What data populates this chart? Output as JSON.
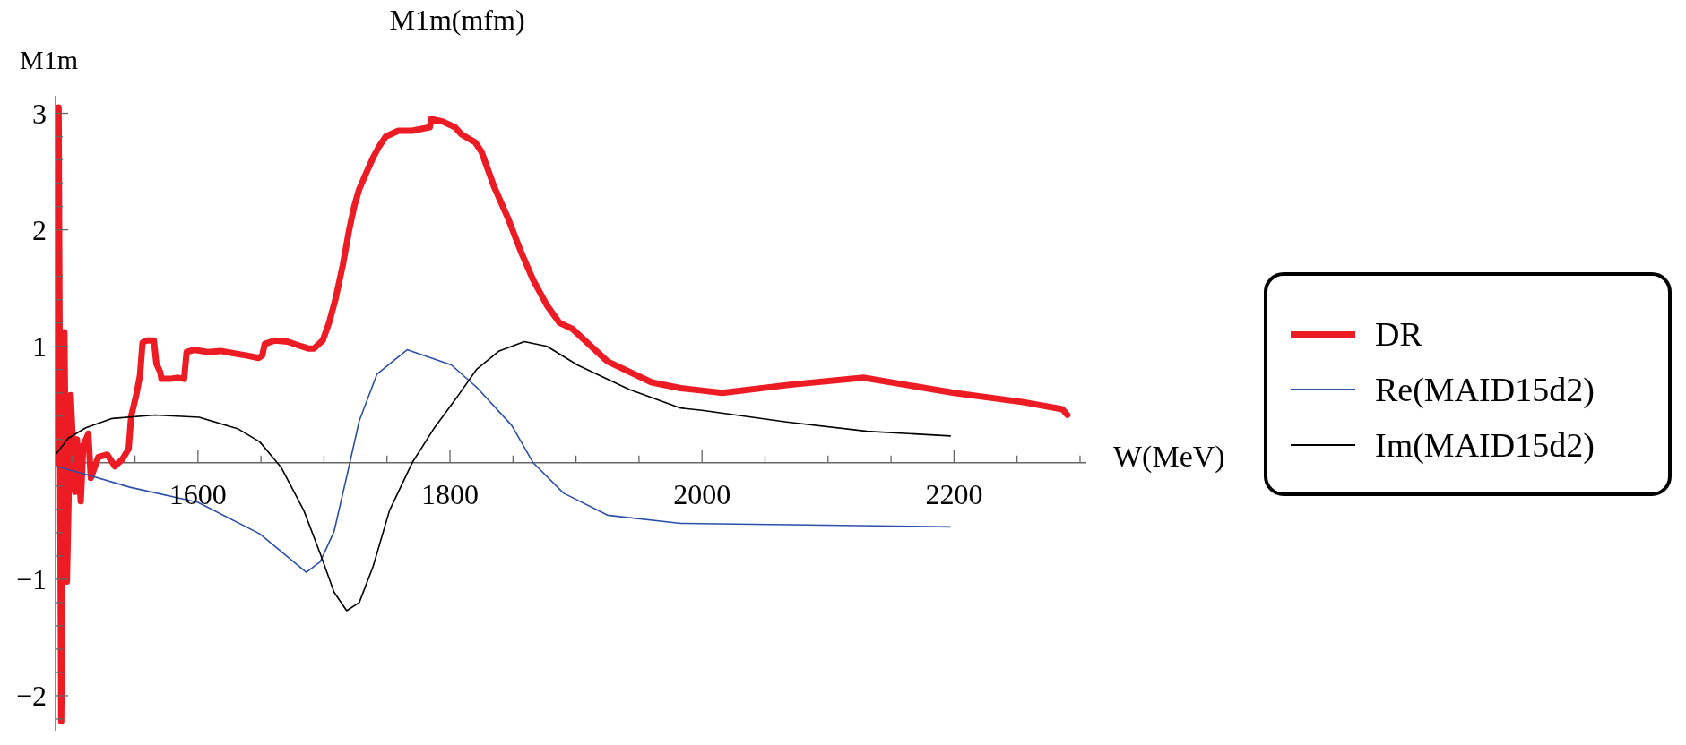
{
  "chart_data": {
    "type": "line",
    "title": "M1m(mfm)",
    "ylabel": "M1m",
    "xlabel": "W(MeV)",
    "xlim": [
      1487,
      2305
    ],
    "ylim": [
      -2.3,
      3.15
    ],
    "xticks": [
      {
        "value": 1500,
        "label": null
      },
      {
        "value": 1550,
        "label": null
      },
      1600,
      {
        "value": 1650,
        "label": null
      },
      {
        "value": 1700,
        "label": null
      },
      {
        "value": 1750,
        "label": null
      },
      1800,
      {
        "value": 1850,
        "label": null
      },
      {
        "value": 1900,
        "label": null
      },
      {
        "value": 1950,
        "label": null
      },
      2000,
      {
        "value": 2050,
        "label": null
      },
      {
        "value": 2100,
        "label": null
      },
      {
        "value": 2150,
        "label": null
      },
      2200,
      {
        "value": 2250,
        "label": null
      },
      {
        "value": 2300,
        "label": null
      }
    ],
    "yticks": [
      {
        "value": -2.2,
        "label": null
      },
      {
        "value": -2,
        "label": "−2"
      },
      {
        "value": -1.8,
        "label": null
      },
      {
        "value": -1.6,
        "label": null
      },
      {
        "value": -1.4,
        "label": null
      },
      {
        "value": -1.2,
        "label": null
      },
      {
        "value": -1,
        "label": "−1"
      },
      {
        "value": -0.8,
        "label": null
      },
      {
        "value": -0.6,
        "label": null
      },
      {
        "value": -0.4,
        "label": null
      },
      {
        "value": -0.2,
        "label": null
      },
      {
        "value": 0.2,
        "label": null
      },
      {
        "value": 0.4,
        "label": null
      },
      {
        "value": 0.6,
        "label": null
      },
      {
        "value": 0.8,
        "label": null
      },
      1,
      {
        "value": 1.2,
        "label": null
      },
      {
        "value": 1.4,
        "label": null
      },
      {
        "value": 1.6,
        "label": null
      },
      {
        "value": 1.8,
        "label": null
      },
      2,
      {
        "value": 2.2,
        "label": null
      },
      {
        "value": 2.4,
        "label": null
      },
      {
        "value": 2.6,
        "label": null
      },
      {
        "value": 2.8,
        "label": null
      },
      3
    ],
    "legend": "right",
    "marker": "none",
    "line_style": "solid",
    "series": [
      {
        "name": "DR",
        "color": "#ed1c24",
        "x": [
          1487,
          1489.4,
          1491.5,
          1494,
          1496,
          1499,
          1502.5,
          1504,
          1507,
          1509,
          1513,
          1515,
          1521,
          1528,
          1534,
          1540,
          1545,
          1547,
          1551,
          1554,
          1556,
          1559,
          1565,
          1567,
          1570,
          1571,
          1578,
          1584,
          1589,
          1591,
          1597,
          1608,
          1618,
          1628,
          1639,
          1648,
          1651,
          1653,
          1661,
          1671,
          1682,
          1688,
          1692,
          1699,
          1704,
          1709,
          1715,
          1720,
          1724,
          1728,
          1734,
          1739,
          1744,
          1749,
          1759,
          1770,
          1784,
          1785,
          1794,
          1804,
          1809,
          1820,
          1825,
          1835,
          1846,
          1856,
          1866,
          1877,
          1887,
          1897,
          1925,
          1960,
          1983,
          2000,
          2016,
          2070,
          2128,
          2200,
          2255,
          2286,
          2290
        ],
        "values": [
          0,
          3.05,
          -2.22,
          1.12,
          -1.02,
          0.58,
          -0.25,
          0.2,
          -0.33,
          0.15,
          0.25,
          -0.13,
          0.05,
          0.07,
          -0.03,
          0.03,
          0.12,
          0.4,
          0.58,
          0.75,
          1.03,
          1.05,
          1.05,
          0.85,
          0.78,
          0.72,
          0.72,
          0.73,
          0.72,
          0.95,
          0.97,
          0.95,
          0.96,
          0.94,
          0.92,
          0.9,
          0.92,
          1.02,
          1.05,
          1.04,
          1,
          0.98,
          0.98,
          1.05,
          1.2,
          1.4,
          1.7,
          2,
          2.2,
          2.35,
          2.5,
          2.62,
          2.72,
          2.8,
          2.85,
          2.85,
          2.88,
          2.95,
          2.93,
          2.88,
          2.82,
          2.75,
          2.67,
          2.37,
          2.1,
          1.82,
          1.57,
          1.35,
          1.2,
          1.15,
          0.87,
          0.69,
          0.64,
          0.62,
          0.6,
          0.67,
          0.73,
          0.6,
          0.52,
          0.46,
          0.41
        ]
      },
      {
        "name": "Re(MAID15d2)",
        "color": "#2b4fa8",
        "x": [
          1487,
          1511,
          1546,
          1600,
          1649,
          1686,
          1697,
          1708,
          1718,
          1728,
          1742,
          1766,
          1801,
          1821,
          1849,
          1866,
          1890,
          1925,
          1983,
          2197
        ],
        "values": [
          -0.03,
          -0.1,
          -0.21,
          -0.34,
          -0.61,
          -0.94,
          -0.85,
          -0.59,
          -0.12,
          0.36,
          0.76,
          0.97,
          0.84,
          0.65,
          0.32,
          0,
          -0.26,
          -0.45,
          -0.52,
          -0.55
        ]
      },
      {
        "name": "Im(MAID15d2)",
        "color": "#000000",
        "x": [
          1487,
          1497,
          1511,
          1532,
          1566,
          1601,
          1632,
          1649,
          1666,
          1684,
          1697,
          1708,
          1718,
          1728,
          1739,
          1752,
          1770,
          1787,
          1804,
          1821,
          1839,
          1859,
          1877,
          1901,
          1942,
          1983,
          2000,
          2067,
          2131,
          2197
        ],
        "values": [
          0.07,
          0.21,
          0.3,
          0.38,
          0.41,
          0.39,
          0.29,
          0.18,
          -0.04,
          -0.41,
          -0.78,
          -1.11,
          -1.27,
          -1.2,
          -0.89,
          -0.41,
          0,
          0.29,
          0.54,
          0.8,
          0.96,
          1.04,
          1,
          0.84,
          0.63,
          0.47,
          0.45,
          0.35,
          0.27,
          0.23
        ]
      }
    ]
  }
}
